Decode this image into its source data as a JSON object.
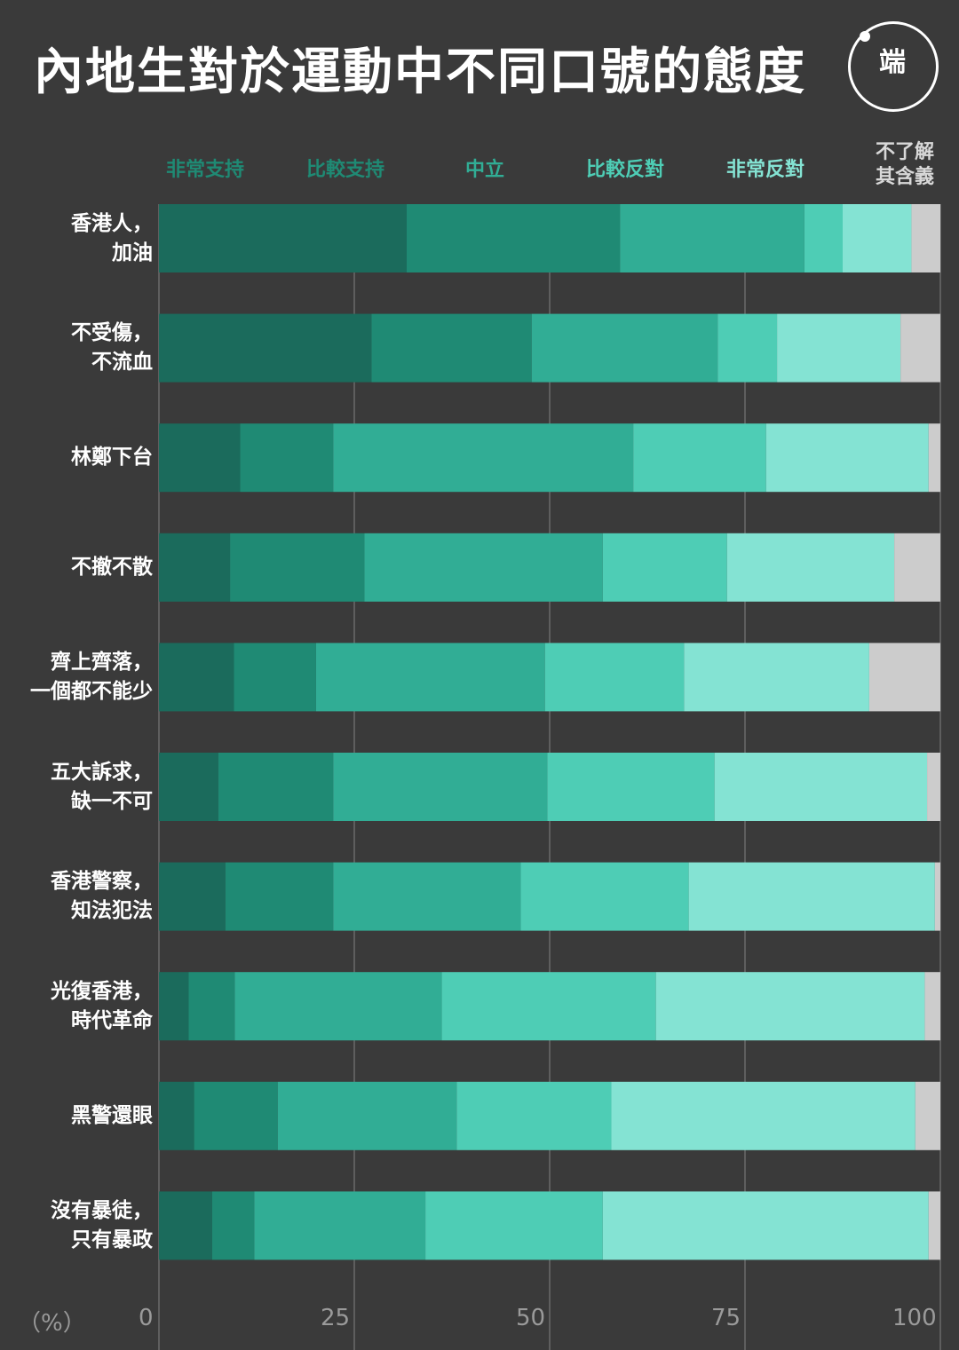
{
  "title": "內地生對於運動中不同口號的態度",
  "logo": {
    "text": "端",
    "icon": "initium-logo-icon"
  },
  "chart_data": {
    "type": "bar",
    "orientation": "horizontal",
    "stacked": true,
    "title": "內地生對於運動中不同口號的態度",
    "xlim": [
      0,
      100
    ],
    "x_ticks": [
      "0",
      "25",
      "50",
      "75",
      "100"
    ],
    "unit_label": "（%）",
    "legend": [
      {
        "name": "非常支持",
        "color": "#1b6b5c"
      },
      {
        "name": "比較支持",
        "color": "#1f8a74"
      },
      {
        "name": "中立",
        "color": "#31ad95"
      },
      {
        "name": "比較反對",
        "color": "#4ecdb5"
      },
      {
        "name": "非常反對",
        "color": "#84e3d3"
      },
      {
        "name": "不了解其含義",
        "name_lines": [
          "不了解",
          "其含義"
        ],
        "color": "#cccccc"
      }
    ],
    "categories": [
      {
        "label": [
          "香港人，",
          "加油"
        ],
        "values": [
          31.7,
          27.3,
          23.6,
          4.9,
          8.8,
          3.7
        ]
      },
      {
        "label": [
          "不受傷，",
          "不流血"
        ],
        "values": [
          27.2,
          20.5,
          23.8,
          7.6,
          15.8,
          5.1
        ]
      },
      {
        "label": [
          "林鄭下台"
        ],
        "values": [
          10.4,
          11.9,
          38.4,
          17.0,
          20.8,
          1.5
        ]
      },
      {
        "label": [
          "不撤不散"
        ],
        "values": [
          9.1,
          17.2,
          30.5,
          15.9,
          21.4,
          5.9
        ]
      },
      {
        "label": [
          "齊上齊落，",
          "一個都不能少"
        ],
        "values": [
          9.6,
          10.5,
          29.3,
          17.8,
          23.7,
          9.1
        ]
      },
      {
        "label": [
          "五大訴求，",
          "缺一不可"
        ],
        "values": [
          7.6,
          14.7,
          27.4,
          21.4,
          27.2,
          1.7
        ]
      },
      {
        "label": [
          "香港警察，",
          "知法犯法"
        ],
        "values": [
          8.5,
          13.8,
          24.0,
          21.5,
          31.5,
          0.7
        ]
      },
      {
        "label": [
          "光復香港，",
          "時代革命"
        ],
        "values": [
          3.8,
          5.9,
          26.5,
          27.4,
          34.4,
          2.0
        ]
      },
      {
        "label": [
          "黑警還眼"
        ],
        "values": [
          4.5,
          10.7,
          22.9,
          19.8,
          38.9,
          3.2
        ]
      },
      {
        "label": [
          "沒有暴徒，",
          "只有暴政"
        ],
        "values": [
          6.8,
          5.4,
          21.9,
          22.7,
          41.7,
          1.5
        ]
      }
    ]
  }
}
